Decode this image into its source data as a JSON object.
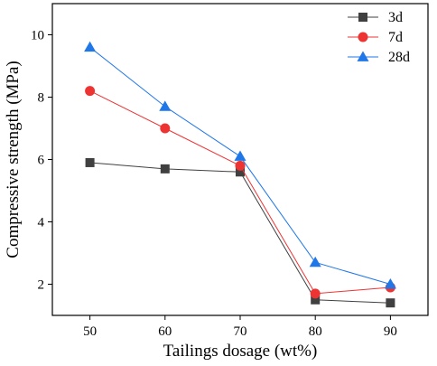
{
  "chart_data": {
    "type": "line",
    "xlabel": "Tailings dosage (wt%)",
    "ylabel": "Compressive strength (MPa)",
    "x": [
      50,
      60,
      70,
      80,
      90
    ],
    "xticks": [
      50,
      60,
      70,
      80,
      90
    ],
    "xlim": [
      45,
      95
    ],
    "yticks": [
      2,
      4,
      6,
      8,
      10
    ],
    "ylim": [
      1,
      11
    ],
    "grid": false,
    "legend_position": "top-right",
    "series": [
      {
        "name": "3d",
        "values": [
          5.9,
          5.7,
          5.6,
          1.5,
          1.4
        ],
        "color": "#404040",
        "marker": "square"
      },
      {
        "name": "7d",
        "values": [
          8.2,
          7.0,
          5.8,
          1.7,
          1.9
        ],
        "color": "#ee3333",
        "marker": "circle"
      },
      {
        "name": "28d",
        "values": [
          9.6,
          7.7,
          6.1,
          2.7,
          2.0
        ],
        "color": "#1f77e8",
        "marker": "triangle"
      }
    ]
  }
}
